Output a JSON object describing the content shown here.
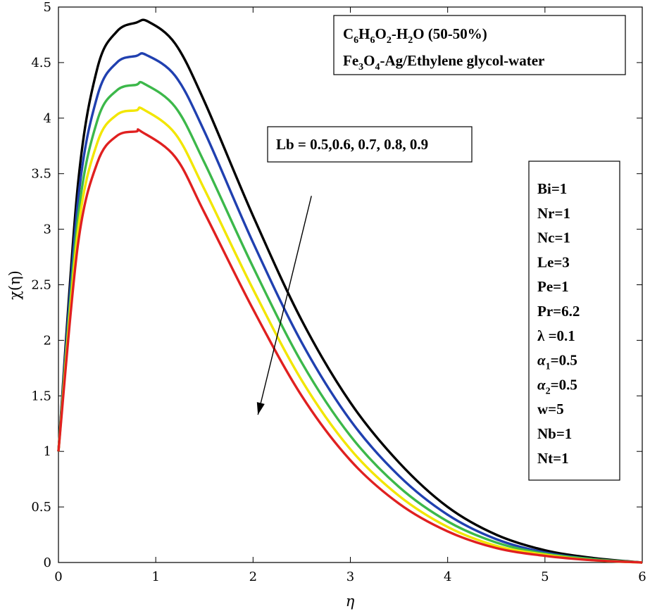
{
  "chart_data": {
    "type": "line",
    "xlabel": "η",
    "ylabel": "χ(η)",
    "xlim": [
      0,
      6
    ],
    "ylim": [
      0,
      5
    ],
    "xticks": [
      "0",
      "1",
      "2",
      "3",
      "4",
      "5",
      "6"
    ],
    "yticks": [
      "0",
      "0.5",
      "1",
      "1.5",
      "2",
      "2.5",
      "3",
      "3.5",
      "4",
      "4.5",
      "5"
    ],
    "grid": false,
    "series_param": "Lb",
    "series": [
      {
        "param": 0.5,
        "color": "#000000",
        "peak_x": 0.92,
        "peak_y": 4.87,
        "x": [
          0,
          0.2,
          0.4,
          0.6,
          0.8,
          0.92,
          1.2,
          1.5,
          2,
          2.5,
          3,
          3.5,
          4,
          4.5,
          5,
          5.5,
          6
        ],
        "y": [
          1.0,
          3.4,
          4.45,
          4.78,
          4.86,
          4.87,
          4.67,
          4.15,
          3.12,
          2.18,
          1.44,
          0.9,
          0.5,
          0.25,
          0.11,
          0.04,
          0.0
        ]
      },
      {
        "param": 0.6,
        "color": "#2040b0",
        "peak_x": 0.9,
        "peak_y": 4.57,
        "x": [
          0,
          0.2,
          0.4,
          0.6,
          0.8,
          0.9,
          1.2,
          1.5,
          2,
          2.5,
          3,
          3.5,
          4,
          4.5,
          5,
          5.5,
          6
        ],
        "y": [
          1.0,
          3.25,
          4.2,
          4.5,
          4.56,
          4.57,
          4.38,
          3.88,
          2.88,
          1.98,
          1.28,
          0.78,
          0.43,
          0.21,
          0.09,
          0.03,
          0.0
        ]
      },
      {
        "param": 0.7,
        "color": "#3cb84a",
        "peak_x": 0.88,
        "peak_y": 4.31,
        "x": [
          0,
          0.2,
          0.4,
          0.6,
          0.8,
          0.88,
          1.2,
          1.5,
          2,
          2.5,
          3,
          3.5,
          4,
          4.5,
          5,
          5.5,
          6
        ],
        "y": [
          1.0,
          3.1,
          3.98,
          4.25,
          4.3,
          4.31,
          4.1,
          3.6,
          2.66,
          1.8,
          1.14,
          0.68,
          0.37,
          0.18,
          0.08,
          0.03,
          0.0
        ]
      },
      {
        "param": 0.8,
        "color": "#f2e600",
        "peak_x": 0.87,
        "peak_y": 4.08,
        "x": [
          0,
          0.2,
          0.4,
          0.6,
          0.8,
          0.87,
          1.2,
          1.5,
          2,
          2.5,
          3,
          3.5,
          4,
          4.5,
          5,
          5.5,
          6
        ],
        "y": [
          1.0,
          2.98,
          3.78,
          4.03,
          4.07,
          4.08,
          3.86,
          3.36,
          2.46,
          1.64,
          1.02,
          0.6,
          0.32,
          0.15,
          0.07,
          0.02,
          0.0
        ]
      },
      {
        "param": 0.9,
        "color": "#e02020",
        "peak_x": 0.85,
        "peak_y": 3.88,
        "x": [
          0,
          0.2,
          0.4,
          0.6,
          0.8,
          0.85,
          1.2,
          1.5,
          2,
          2.5,
          3,
          3.5,
          4,
          4.5,
          5,
          5.5,
          6
        ],
        "y": [
          1.0,
          2.86,
          3.6,
          3.84,
          3.88,
          3.88,
          3.65,
          3.15,
          2.28,
          1.5,
          0.92,
          0.53,
          0.28,
          0.13,
          0.06,
          0.02,
          0.0
        ]
      }
    ],
    "annotations": {
      "fluid_box": {
        "line1": {
          "a": "C",
          "a_sub": "6",
          "b": "H",
          "b_sub": "6",
          "c": "O",
          "c_sub": "2",
          "d": "-H",
          "d_sub": "2",
          "e": "O (50-50%)"
        },
        "line2": {
          "a": "Fe",
          "a_sub": "3",
          "b": "O",
          "b_sub": "4",
          "c": "-Ag/Ethylene glycol-water"
        }
      },
      "lb_label": "Lb = 0.5,0.6, 0.7, 0.8, 0.9",
      "arrow": {
        "from": [
          2.6,
          3.3
        ],
        "to": [
          2.05,
          1.33
        ]
      },
      "params": [
        {
          "text": "Bi=1"
        },
        {
          "text": "Nr=1"
        },
        {
          "text": "Nc=1"
        },
        {
          "text": "Le=3"
        },
        {
          "text": "Pe=1"
        },
        {
          "text": "Pr=6.2"
        },
        {
          "text": "λ =0.1"
        },
        {
          "text": "α",
          "sub": "1",
          "rest": "=0.5"
        },
        {
          "text": "α",
          "sub": "2",
          "rest": "=0.5"
        },
        {
          "text": "w=5"
        },
        {
          "text": "Nb=1"
        },
        {
          "text": "Nt=1"
        }
      ]
    }
  }
}
